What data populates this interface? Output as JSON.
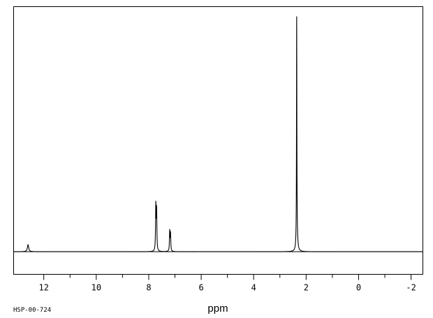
{
  "chart_data": {
    "type": "line",
    "title": "",
    "xlabel": "ppm",
    "ylabel": "",
    "code": "HSP-00-724",
    "x_reversed": true,
    "xlim": [
      13.15,
      -2.45
    ],
    "ylim": [
      -0.09,
      0.975
    ],
    "baseline": 0,
    "grid": false,
    "major_ticks": [
      12,
      10,
      8,
      6,
      4,
      2,
      0,
      -2
    ],
    "tick_labels": [
      "12",
      "10",
      "8",
      "6",
      "4",
      "2",
      "0",
      "-2"
    ],
    "minor_ticks": [
      11,
      9,
      7,
      5,
      3,
      1,
      -1
    ],
    "peaks": [
      {
        "ppm": 12.6,
        "height": 0.028,
        "width": 0.03
      },
      {
        "ppm": 7.73,
        "height": 0.18,
        "width": 0.012
      },
      {
        "ppm": 7.7,
        "height": 0.16,
        "width": 0.012
      },
      {
        "ppm": 7.2,
        "height": 0.08,
        "width": 0.012
      },
      {
        "ppm": 7.17,
        "height": 0.07,
        "width": 0.012
      },
      {
        "ppm": 2.36,
        "height": 0.9,
        "width": 0.008
      },
      {
        "ppm": 2.345,
        "height": 0.05,
        "width": 0.03
      }
    ],
    "colors": {
      "line": "#000000",
      "frame": "#000000",
      "background": "#ffffff"
    }
  }
}
